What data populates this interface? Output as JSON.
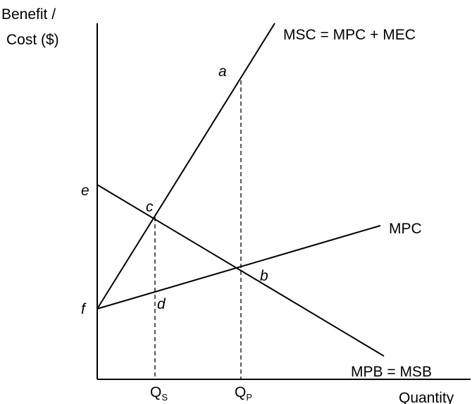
{
  "axes": {
    "y_label_line1": "Benefit /",
    "y_label_line2": "Cost ($)",
    "x_label": "Quantity"
  },
  "curves": {
    "msc": "MSC = MPC + MEC",
    "mpc": "MPC",
    "mpb": "MPB  = MSB"
  },
  "points": {
    "a": "a",
    "b": "b",
    "c": "c",
    "d": "d",
    "e": "e",
    "f": "f"
  },
  "quantities": {
    "qs_main": "Q",
    "qs_sub": "S",
    "qp_main": "Q",
    "qp_sub": "P"
  }
}
